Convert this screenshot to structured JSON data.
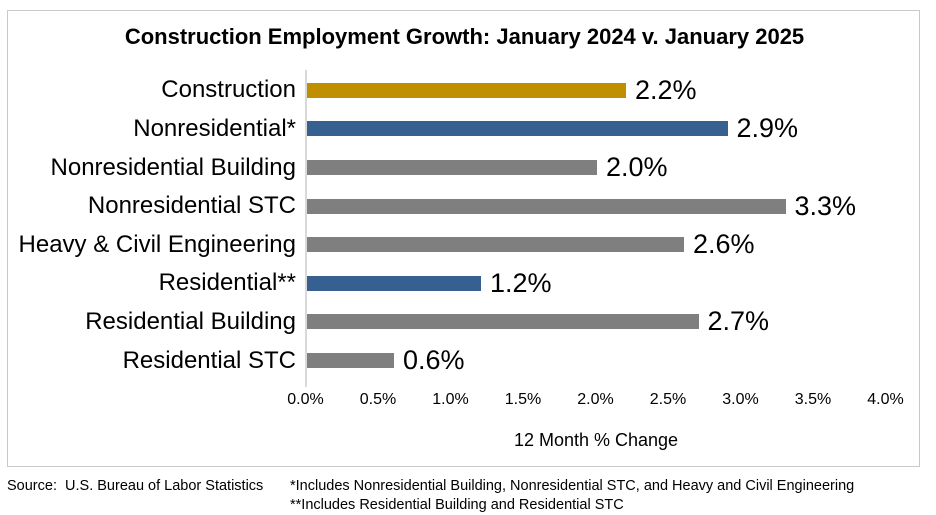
{
  "title": "Construction Employment Growth: January 2024 v. January 2025",
  "chart_data": {
    "type": "bar",
    "orientation": "horizontal",
    "title": "Construction Employment Growth: January 2024 v. January 2025",
    "categories": [
      "Construction",
      "Nonresidential*",
      "Nonresidential Building",
      "Nonresidential STC",
      "Heavy & Civil Engineering",
      "Residential**",
      "Residential Building",
      "Residential STC"
    ],
    "values": [
      2.2,
      2.9,
      2.0,
      3.3,
      2.6,
      1.2,
      2.7,
      0.6
    ],
    "value_labels": [
      "2.2%",
      "2.9%",
      "2.0%",
      "3.3%",
      "2.6%",
      "1.2%",
      "2.7%",
      "0.6%"
    ],
    "bar_color_keys": [
      "gold",
      "blue",
      "gray",
      "gray",
      "gray",
      "blue",
      "gray",
      "gray"
    ],
    "xlabel": "12 Month % Change",
    "ylabel": "",
    "x_ticks": [
      "0.0%",
      "0.5%",
      "1.0%",
      "1.5%",
      "2.0%",
      "2.5%",
      "3.0%",
      "3.5%",
      "4.0%"
    ],
    "xlim": [
      0,
      4
    ],
    "grid": false,
    "legend": "none"
  },
  "colors": {
    "gold": "#bf8f00",
    "blue": "#36608f",
    "gray": "#7f7f7f",
    "axis_line": "#d9d9d9",
    "frame_border": "#c9c9c9"
  },
  "footer": {
    "source": "Source:  U.S. Bureau of Labor Statistics",
    "footnote1": "*Includes Nonresidential Building, Nonresidential STC, and Heavy and Civil Engineering",
    "footnote2": "**Includes Residential Building and Residential STC"
  }
}
